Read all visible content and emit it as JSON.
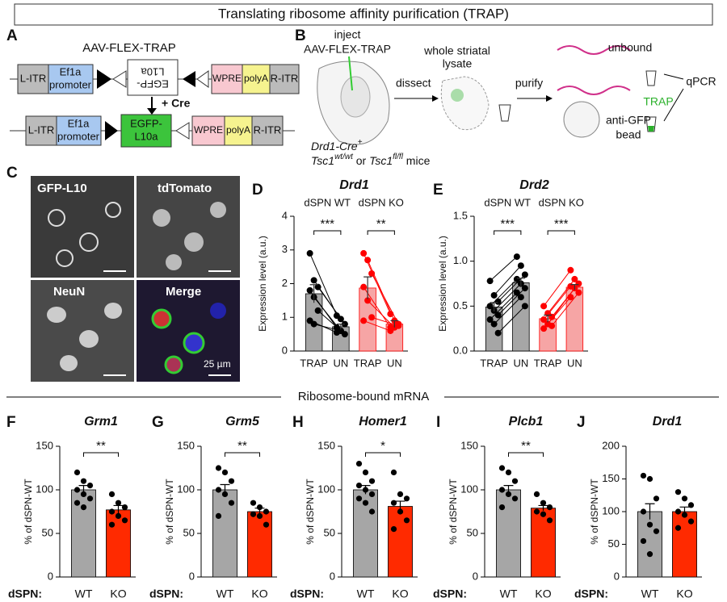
{
  "header": "Translating ribosome affinity purification (TRAP)",
  "panel_labels": [
    "A",
    "B",
    "C",
    "D",
    "E",
    "F",
    "G",
    "H",
    "I",
    "J"
  ],
  "panel_a": {
    "title": "AAV-FLEX-TRAP",
    "top_construct": {
      "left_itr": "L-ITR",
      "promoter": [
        "Ef1a",
        "promoter"
      ],
      "flipped_gene": [
        "EGFP-",
        "L10a"
      ],
      "wpre": "WPRE",
      "polya": "polyA",
      "right_itr": "R-ITR"
    },
    "cre": "+ Cre",
    "bottom_construct": {
      "left_itr": "L-ITR",
      "promoter": [
        "Ef1a",
        "promoter"
      ],
      "gene": [
        "EGFP-",
        "L10a"
      ],
      "wpre": "WPRE",
      "polya": "polyA",
      "right_itr": "R-ITR"
    }
  },
  "panel_b": {
    "inject": "inject",
    "vector": "AAV-FLEX-TRAP",
    "dissect": "dissect",
    "lysate": [
      "whole striatal",
      "lysate"
    ],
    "purify": "purify",
    "unbound": "unbound",
    "trap": "TRAP",
    "qpcr": "qPCR",
    "bead": [
      "anti-GFP",
      "bead"
    ],
    "mouse_line": {
      "cre": "Drd1-Cre",
      "cre_sup": "+",
      "gene_a": "Tsc1",
      "sup_a": "wt/wt",
      "or": " or ",
      "gene_b": "Tsc1",
      "sup_b": "fl/fl",
      "mice": " mice"
    }
  },
  "panel_c": {
    "labels": [
      "GFP-L10",
      "tdTomato",
      "NeuN",
      "Merge"
    ],
    "scale_bar": "25 µm"
  },
  "section_title": "Ribosome-bound mRNA",
  "chart_data": [
    {
      "type": "paired-bar",
      "title": "Drd1",
      "ylabel": "Expression level (a.u.)",
      "ylim": [
        0,
        4
      ],
      "yticks": [
        0,
        1,
        2,
        3,
        4
      ],
      "groups": [
        {
          "name": "dSPN WT",
          "categories": [
            "TRAP",
            "UN"
          ],
          "values": [
            1.7,
            0.72
          ],
          "errors": [
            0.27,
            0.08
          ],
          "color": "#a6a6a6",
          "point_color": "#000000",
          "significance": "***",
          "points": [
            [
              2.9,
              2.1,
              1.9,
              1.8,
              1.6,
              1.2,
              0.9,
              0.8
            ],
            [
              1.05,
              0.95,
              0.8,
              0.7,
              0.6,
              0.5,
              0.55,
              0.6
            ]
          ]
        },
        {
          "name": "dSPN KO",
          "categories": [
            "TRAP",
            "UN"
          ],
          "values": [
            1.87,
            0.8
          ],
          "errors": [
            0.33,
            0.1
          ],
          "color": "#f6a5a5",
          "point_color": "#ff0000",
          "significance": "**",
          "points": [
            [
              2.9,
              2.7,
              2.3,
              1.9,
              1.5,
              1.0,
              0.9
            ],
            [
              1.1,
              0.9,
              0.8,
              0.7,
              0.7,
              0.75,
              0.6
            ]
          ]
        }
      ]
    },
    {
      "type": "paired-bar",
      "title": "Drd2",
      "ylabel": "Expression level (a.u.)",
      "ylim": [
        0,
        1.5
      ],
      "yticks": [
        {
          "value": 0,
          "label": "0.0"
        },
        0.5,
        {
          "value": 1,
          "label": "1.0"
        },
        1.5
      ],
      "groups": [
        {
          "name": "dSPN WT",
          "categories": [
            "TRAP",
            "UN"
          ],
          "values": [
            0.49,
            0.76
          ],
          "errors": [
            0.05,
            0.05
          ],
          "color": "#a6a6a6",
          "point_color": "#000000",
          "significance": "***",
          "points": [
            [
              0.78,
              0.62,
              0.55,
              0.5,
              0.45,
              0.4,
              0.35,
              0.3,
              0.2
            ],
            [
              1.05,
              0.95,
              0.85,
              0.8,
              0.75,
              0.7,
              0.65,
              0.6,
              0.5
            ]
          ]
        },
        {
          "name": "dSPN KO",
          "categories": [
            "TRAP",
            "UN"
          ],
          "values": [
            0.36,
            0.71
          ],
          "errors": [
            0.04,
            0.03
          ],
          "color": "#f6a5a5",
          "point_color": "#ff0000",
          "significance": "***",
          "points": [
            [
              0.5,
              0.42,
              0.38,
              0.35,
              0.3,
              0.28,
              0.25
            ],
            [
              0.9,
              0.8,
              0.75,
              0.72,
              0.7,
              0.65,
              0.6
            ]
          ]
        }
      ]
    },
    {
      "type": "bar",
      "title": "Grm1",
      "ylabel": "% of dSPN-WT",
      "x_prefix": "dSPN:",
      "categories": [
        "WT",
        "KO"
      ],
      "values": [
        100,
        77
      ],
      "errors": [
        5,
        5
      ],
      "colors": [
        "#a6a6a6",
        "#ff2a00"
      ],
      "significance": "**",
      "points": [
        [
          120,
          110,
          105,
          100,
          95,
          90,
          85,
          80
        ],
        [
          95,
          85,
          80,
          75,
          70,
          65,
          60
        ]
      ],
      "ylim": [
        0,
        150
      ],
      "yticks": [
        0,
        50,
        100,
        150
      ]
    },
    {
      "type": "bar",
      "title": "Grm5",
      "ylabel": "% of dSPN-WT",
      "x_prefix": "dSPN:",
      "categories": [
        "WT",
        "KO"
      ],
      "values": [
        100,
        75
      ],
      "errors": [
        6,
        4
      ],
      "colors": [
        "#a6a6a6",
        "#ff2a00"
      ],
      "significance": "**",
      "points": [
        [
          125,
          120,
          110,
          100,
          95,
          85,
          70
        ],
        [
          85,
          80,
          75,
          72,
          70,
          60
        ]
      ],
      "ylim": [
        0,
        150
      ],
      "yticks": [
        0,
        50,
        100,
        150
      ]
    },
    {
      "type": "bar",
      "title": "Homer1",
      "ylabel": "% of dSPN-WT",
      "x_prefix": "dSPN:",
      "categories": [
        "WT",
        "KO"
      ],
      "values": [
        100,
        81
      ],
      "errors": [
        5,
        6
      ],
      "colors": [
        "#a6a6a6",
        "#ff2a00"
      ],
      "significance": "*",
      "points": [
        [
          130,
          120,
          110,
          105,
          100,
          95,
          90,
          85,
          75
        ],
        [
          120,
          95,
          90,
          85,
          75,
          65,
          55
        ]
      ],
      "ylim": [
        0,
        150
      ],
      "yticks": [
        0,
        50,
        100,
        150
      ]
    },
    {
      "type": "bar",
      "title": "Plcb1",
      "ylabel": "% of dSPN-WT",
      "x_prefix": "dSPN:",
      "categories": [
        "WT",
        "KO"
      ],
      "values": [
        100,
        79
      ],
      "errors": [
        5,
        3
      ],
      "colors": [
        "#a6a6a6",
        "#ff2a00"
      ],
      "significance": "**",
      "points": [
        [
          125,
          120,
          110,
          100,
          95,
          90,
          80
        ],
        [
          95,
          85,
          80,
          75,
          72,
          65
        ]
      ],
      "ylim": [
        0,
        150
      ],
      "yticks": [
        0,
        50,
        100,
        150
      ]
    },
    {
      "type": "bar",
      "title": "Drd1",
      "ylabel": "% of dSPN-WT",
      "x_prefix": "dSPN:",
      "categories": [
        "WT",
        "KO"
      ],
      "values": [
        100,
        100
      ],
      "errors": [
        12,
        7
      ],
      "colors": [
        "#a6a6a6",
        "#ff2a00"
      ],
      "points": [
        [
          155,
          150,
          120,
          100,
          80,
          70,
          55,
          35
        ],
        [
          130,
          120,
          110,
          100,
          95,
          85,
          75
        ]
      ],
      "ylim": [
        0,
        200
      ],
      "yticks": [
        0,
        50,
        100,
        150,
        200
      ]
    }
  ]
}
